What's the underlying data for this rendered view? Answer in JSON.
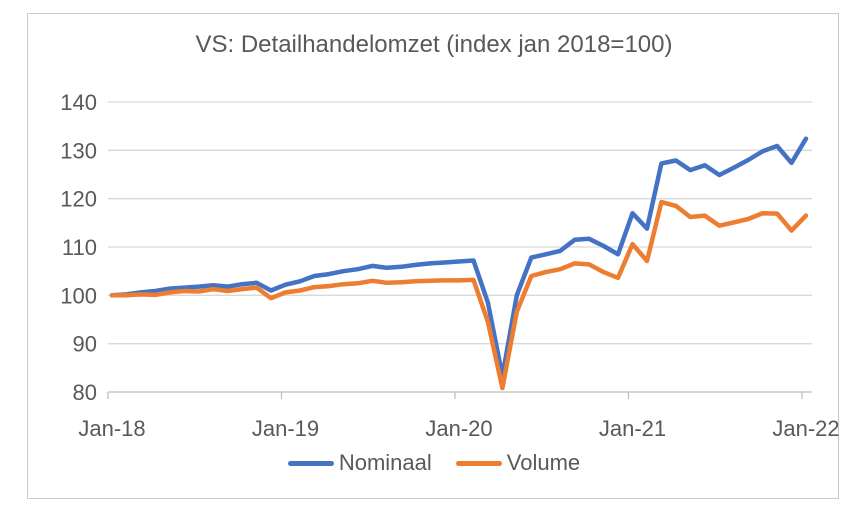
{
  "chart_data": {
    "type": "line",
    "title": "VS: Detailhandelomzet (index jan 2018=100)",
    "xlabel": "",
    "ylabel": "",
    "ylim": [
      80,
      140
    ],
    "y_ticks": [
      80,
      90,
      100,
      110,
      120,
      130,
      140
    ],
    "x_tick_labels": [
      "Jan-18",
      "Jan-19",
      "Jan-20",
      "Jan-21",
      "Jan-22"
    ],
    "grid": true,
    "legend_position": "bottom",
    "categories": [
      "Jan-18",
      "Feb-18",
      "Mar-18",
      "Apr-18",
      "May-18",
      "Jun-18",
      "Jul-18",
      "Aug-18",
      "Sep-18",
      "Oct-18",
      "Nov-18",
      "Dec-18",
      "Jan-19",
      "Feb-19",
      "Mar-19",
      "Apr-19",
      "May-19",
      "Jun-19",
      "Jul-19",
      "Aug-19",
      "Sep-19",
      "Oct-19",
      "Nov-19",
      "Dec-19",
      "Jan-20",
      "Feb-20",
      "Mar-20",
      "Apr-20",
      "May-20",
      "Jun-20",
      "Jul-20",
      "Aug-20",
      "Sep-20",
      "Oct-20",
      "Nov-20",
      "Dec-20",
      "Jan-21",
      "Feb-21",
      "Mar-21",
      "Apr-21",
      "May-21",
      "Jun-21",
      "Jul-21",
      "Aug-21",
      "Sep-21",
      "Oct-21",
      "Nov-21",
      "Dec-21",
      "Jan-22"
    ],
    "series": [
      {
        "name": "Nominaal",
        "color": "#4472C4",
        "values": [
          100.0,
          100.2,
          100.6,
          100.9,
          101.4,
          101.6,
          101.8,
          102.1,
          101.8,
          102.3,
          102.6,
          101.0,
          102.2,
          102.9,
          104.0,
          104.4,
          105.0,
          105.4,
          106.1,
          105.7,
          105.9,
          106.3,
          106.6,
          106.8,
          107.0,
          107.2,
          98.5,
          83.3,
          100.0,
          107.8,
          108.5,
          109.2,
          111.5,
          111.7,
          110.2,
          108.5,
          117.0,
          113.8,
          127.3,
          127.9,
          125.9,
          126.9,
          124.9,
          126.4,
          128.0,
          129.8,
          130.9,
          127.4,
          132.4
        ]
      },
      {
        "name": "Volume",
        "color": "#ED7D31",
        "values": [
          100.0,
          100.0,
          100.2,
          100.1,
          100.6,
          100.9,
          100.8,
          101.3,
          100.9,
          101.3,
          101.6,
          99.4,
          100.6,
          101.0,
          101.7,
          101.9,
          102.3,
          102.5,
          103.0,
          102.6,
          102.7,
          102.9,
          103.0,
          103.1,
          103.1,
          103.2,
          94.5,
          80.8,
          96.6,
          104.0,
          104.8,
          105.4,
          106.6,
          106.4,
          104.8,
          103.6,
          110.6,
          107.1,
          119.3,
          118.5,
          116.2,
          116.5,
          114.4,
          115.1,
          115.8,
          117.0,
          116.9,
          113.4,
          116.5
        ]
      }
    ]
  },
  "colors": {
    "grid": "#d9d9d9",
    "axis": "#bfbfbf",
    "text": "#595959",
    "frame_border": "#c9c9c9",
    "background": "#ffffff"
  }
}
